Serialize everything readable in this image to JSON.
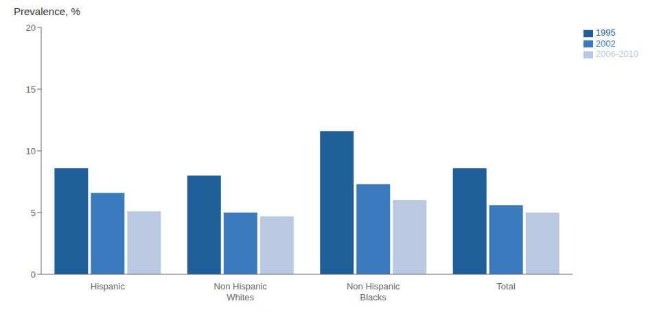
{
  "chart_data": {
    "type": "bar",
    "ylabel": "Prevalence, %",
    "categories": [
      "Hispanic",
      "Non Hispanic\nWhites",
      "Non Hispanic\nBlacks",
      "Total"
    ],
    "series": [
      {
        "name": "1995",
        "color": "#1f5f99",
        "values": [
          8.6,
          8.0,
          11.6,
          8.6
        ]
      },
      {
        "name": "2002",
        "color": "#3a7abf",
        "values": [
          6.6,
          5.0,
          7.3,
          5.6
        ]
      },
      {
        "name": "2006-2010",
        "color": "#b8c9e1",
        "values": [
          5.1,
          4.7,
          6.0,
          5.0
        ]
      }
    ],
    "ylim": [
      0,
      20
    ],
    "yticks": [
      0,
      5,
      10,
      15,
      20
    ],
    "grid": false,
    "legend": "upper right"
  }
}
